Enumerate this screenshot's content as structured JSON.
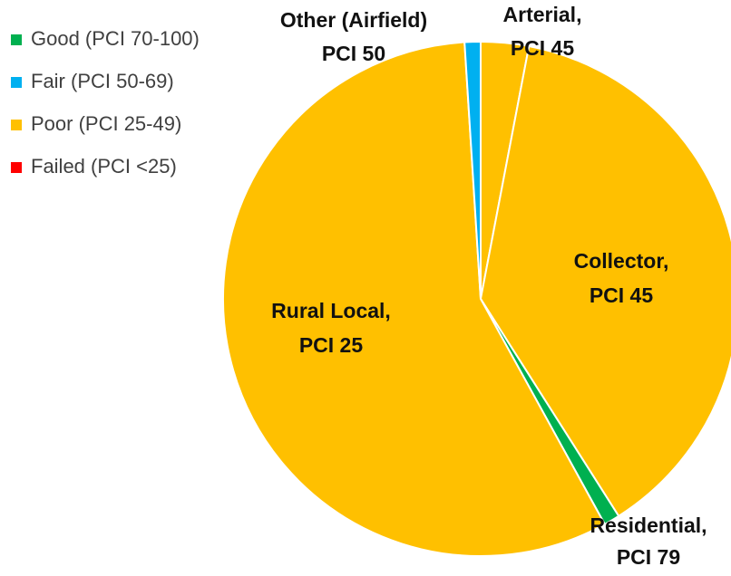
{
  "chart_data": {
    "type": "pie",
    "categories": [
      [
        "Arterial,",
        "PCI 45"
      ],
      [
        "Collector,",
        "PCI 45"
      ],
      [
        "Residential,",
        "PCI 79"
      ],
      [
        "Rural Local,",
        "PCI 25"
      ],
      [
        "Other (Airfield)",
        "PCI 50"
      ]
    ],
    "values": [
      3,
      38,
      1,
      57,
      1
    ],
    "colors": [
      "#FFC000",
      "#FFC000",
      "#00B050",
      "#FFC000",
      "#00B0F0"
    ],
    "legend": [
      {
        "name": "Good (PCI 70-100)",
        "color": "#00B050"
      },
      {
        "name": "Fair (PCI 50-69)",
        "color": "#00B0F0"
      },
      {
        "name": "Poor (PCI 25-49)",
        "color": "#FFC000"
      },
      {
        "name": "Failed (PCI <25)",
        "color": "#FF0000"
      }
    ]
  }
}
